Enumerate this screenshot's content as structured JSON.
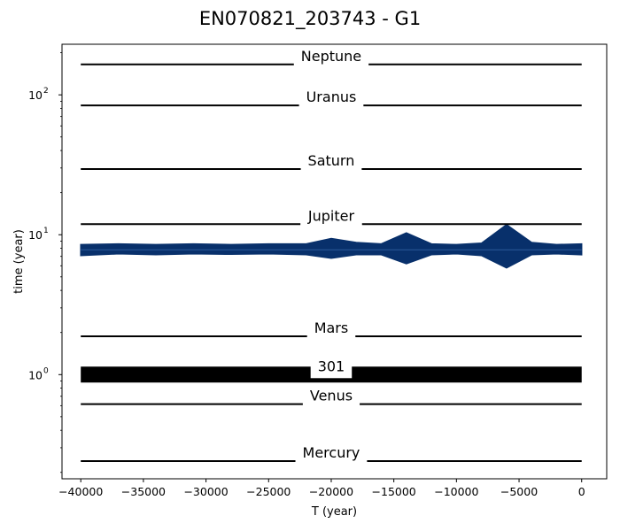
{
  "chart_data": {
    "type": "line",
    "title": "EN070821_203743 - G1",
    "xlabel": "T (year)",
    "ylabel": "time (year)",
    "xlim": [
      -41500,
      2000
    ],
    "ylim": [
      0.18,
      230
    ],
    "yscale": "log",
    "grid": false,
    "x_ticks": [
      -40000,
      -35000,
      -30000,
      -25000,
      -20000,
      -15000,
      -10000,
      -5000,
      0
    ],
    "x_tick_labels": [
      "−40000",
      "−35000",
      "−30000",
      "−25000",
      "−20000",
      "−15000",
      "−10000",
      "−5000",
      "0"
    ],
    "y_ticks": [
      1,
      10,
      100
    ],
    "y_tick_labels": [
      "10",
      "10",
      "10"
    ],
    "y_tick_exponents": [
      "0",
      "1",
      "2"
    ],
    "reference_lines": [
      {
        "label": "Neptune",
        "y": 165
      },
      {
        "label": "Uranus",
        "y": 84
      },
      {
        "label": "Saturn",
        "y": 29.5
      },
      {
        "label": "Jupiter",
        "y": 11.9
      },
      {
        "label": "Mars",
        "y": 1.88
      },
      {
        "label": "301",
        "y": 1.0
      },
      {
        "label": "Venus",
        "y": 0.615
      },
      {
        "label": "Mercury",
        "y": 0.241
      }
    ],
    "x_start": -40000,
    "x_end": 0,
    "band": {
      "color": "#08306b",
      "center": 7.8,
      "x": [
        -40000,
        -37000,
        -34000,
        -31000,
        -28000,
        -25000,
        -22000,
        -20000,
        -18000,
        -16000,
        -14000,
        -12000,
        -10000,
        -8000,
        -6000,
        -4000,
        -2000,
        0
      ],
      "ymin": [
        7.1,
        7.3,
        7.2,
        7.3,
        7.25,
        7.3,
        7.2,
        6.8,
        7.2,
        7.2,
        6.2,
        7.2,
        7.3,
        7.1,
        5.8,
        7.2,
        7.3,
        7.2
      ],
      "ymax": [
        8.5,
        8.6,
        8.5,
        8.6,
        8.5,
        8.6,
        8.6,
        9.4,
        8.8,
        8.6,
        10.3,
        8.6,
        8.5,
        8.7,
        11.8,
        8.8,
        8.5,
        8.6
      ]
    }
  }
}
